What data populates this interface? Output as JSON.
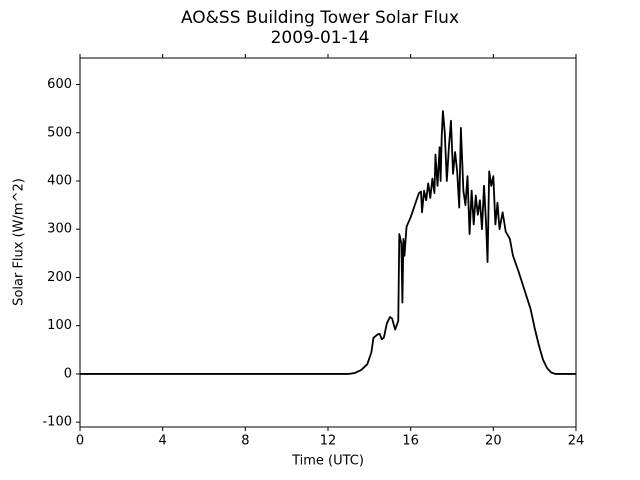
{
  "chart_data": {
    "type": "line",
    "title": "AO&SS Building Tower Solar Flux",
    "subtitle": "2009-01-14",
    "xlabel": "Time (UTC)",
    "ylabel": "Solar Flux (W/m^2)",
    "xlim": [
      0,
      24
    ],
    "xticks": [
      0,
      4,
      8,
      12,
      16,
      20,
      24
    ],
    "ylim": [
      -110,
      655
    ],
    "yticks": [
      -100,
      0,
      100,
      200,
      300,
      400,
      500,
      600
    ],
    "grid": false,
    "x": [
      0,
      13,
      13.3,
      13.6,
      13.9,
      14.1,
      14.2,
      14.4,
      14.5,
      14.6,
      14.7,
      14.85,
      15.0,
      15.1,
      15.25,
      15.4,
      15.45,
      15.55,
      15.6,
      15.65,
      15.7,
      15.8,
      16.0,
      16.2,
      16.4,
      16.5,
      16.55,
      16.65,
      16.75,
      16.85,
      16.95,
      17.05,
      17.15,
      17.2,
      17.3,
      17.4,
      17.45,
      17.5,
      17.56,
      17.65,
      17.75,
      17.85,
      17.95,
      18.05,
      18.15,
      18.25,
      18.35,
      18.43,
      18.55,
      18.65,
      18.75,
      18.85,
      18.95,
      19.05,
      19.15,
      19.25,
      19.35,
      19.45,
      19.55,
      19.65,
      19.72,
      19.8,
      19.9,
      20.0,
      20.1,
      20.2,
      20.3,
      20.45,
      20.6,
      20.8,
      20.95,
      21.2,
      21.5,
      21.8,
      22.0,
      22.2,
      22.4,
      22.6,
      22.8,
      23.0,
      24
    ],
    "series": [
      {
        "name": "Solar Flux",
        "color": "#000000",
        "values": [
          0,
          0,
          2,
          8,
          20,
          45,
          75,
          82,
          83,
          72,
          75,
          105,
          118,
          115,
          92,
          110,
          290,
          270,
          148,
          280,
          245,
          305,
          325,
          350,
          375,
          378,
          335,
          380,
          360,
          395,
          365,
          405,
          375,
          455,
          390,
          470,
          400,
          490,
          545,
          500,
          400,
          470,
          525,
          415,
          460,
          420,
          345,
          510,
          380,
          350,
          410,
          290,
          380,
          310,
          370,
          330,
          360,
          300,
          390,
          310,
          232,
          420,
          390,
          410,
          310,
          355,
          300,
          335,
          295,
          280,
          245,
          215,
          175,
          135,
          95,
          60,
          30,
          12,
          3,
          0,
          0
        ]
      }
    ]
  }
}
